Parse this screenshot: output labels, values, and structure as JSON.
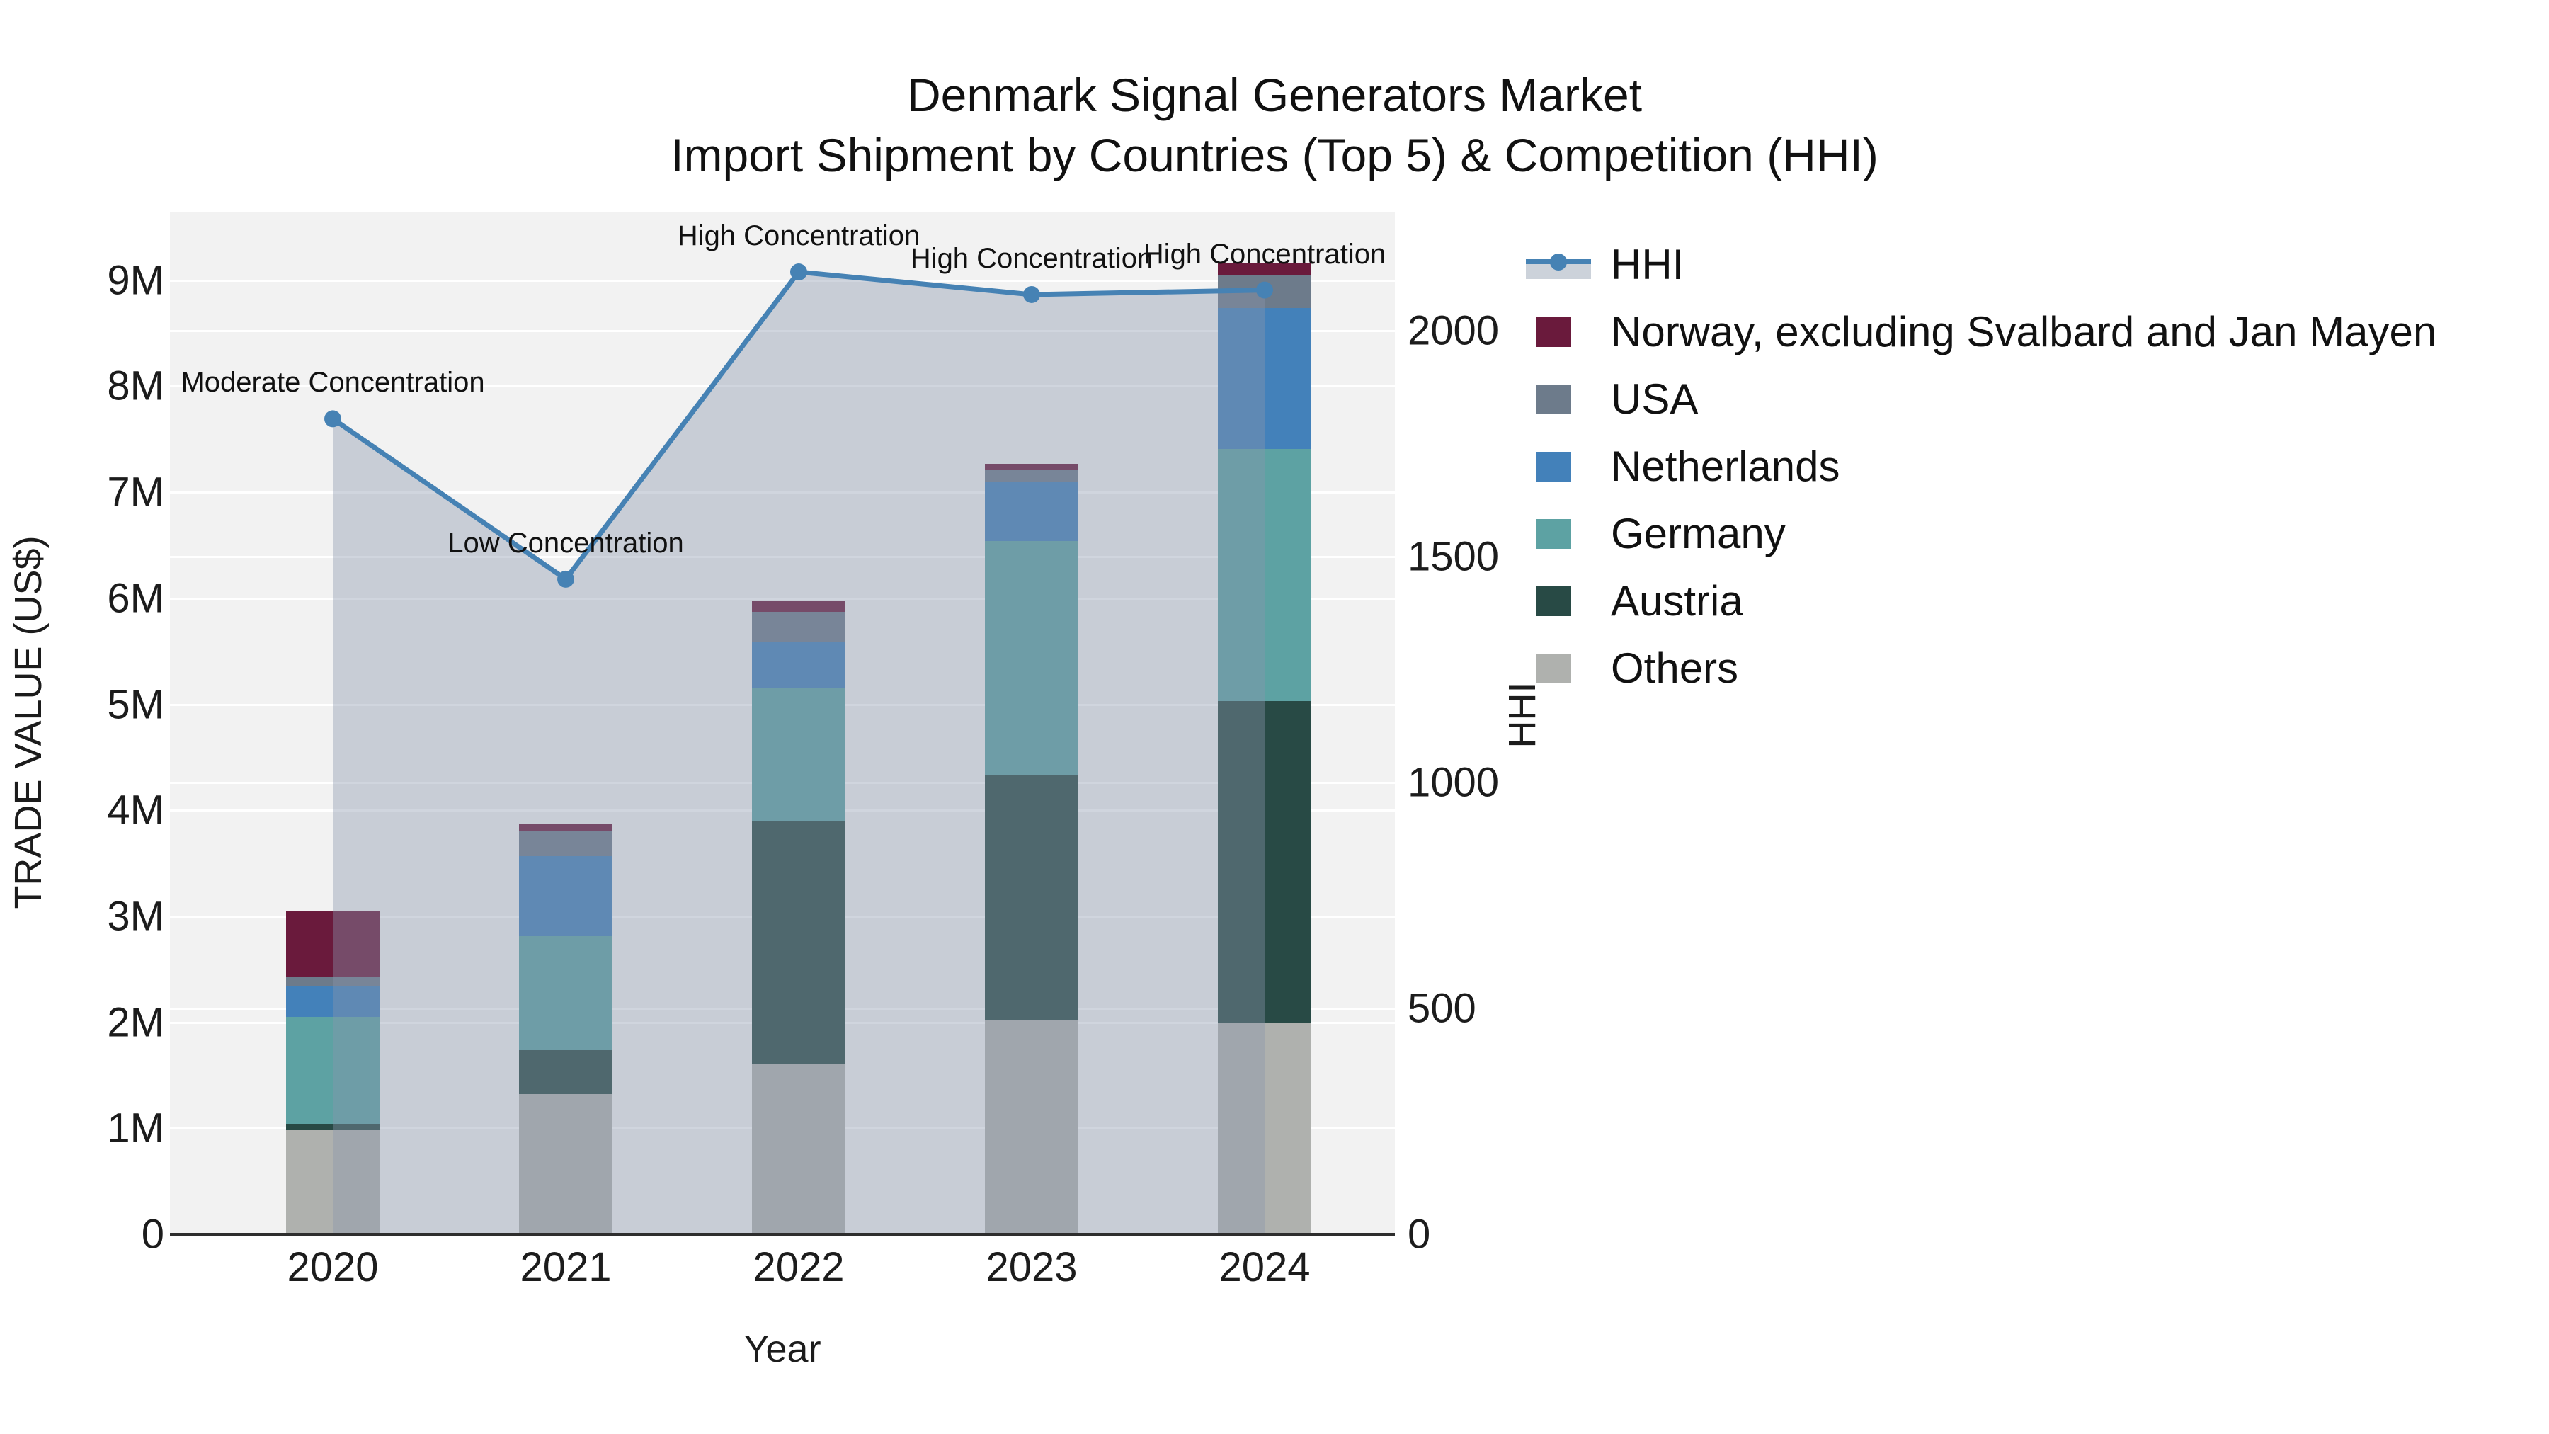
{
  "title": {
    "line1": "Denmark Signal Generators Market",
    "line2": "Import Shipment by Countries (Top 5) & Competition (HHI)"
  },
  "axes": {
    "x": {
      "label": "Year",
      "ticks": [
        "2020",
        "2021",
        "2022",
        "2023",
        "2024"
      ]
    },
    "y_left": {
      "label": "TRADE VALUE (US$)",
      "ticks": [
        {
          "label": "0",
          "value": 0
        },
        {
          "label": "1M",
          "value": 1
        },
        {
          "label": "2M",
          "value": 2
        },
        {
          "label": "3M",
          "value": 3
        },
        {
          "label": "4M",
          "value": 4
        },
        {
          "label": "5M",
          "value": 5
        },
        {
          "label": "6M",
          "value": 6
        },
        {
          "label": "7M",
          "value": 7
        },
        {
          "label": "8M",
          "value": 8
        },
        {
          "label": "9M",
          "value": 9
        }
      ]
    },
    "y_right": {
      "label": "HHI",
      "ticks": [
        {
          "label": "0",
          "value": 0
        },
        {
          "label": "500",
          "value": 500
        },
        {
          "label": "1000",
          "value": 1000
        },
        {
          "label": "1500",
          "value": 1500
        },
        {
          "label": "2000",
          "value": 2000
        }
      ]
    }
  },
  "colors": {
    "plot_background": "#f2f2f2",
    "grid": "#ffffff",
    "axis_spine": "#2e2e2e",
    "hhi_line": "#4682b4",
    "hhi_area_fill": "rgba(138,151,173,0.40)",
    "text": "#111111"
  },
  "chart_data": {
    "type": "combo",
    "bar_type": "stacked",
    "categories": [
      "2020",
      "2021",
      "2022",
      "2023",
      "2024"
    ],
    "xlabel": "Year",
    "ylabel_left": "TRADE VALUE (US$)",
    "ylabel_right": "HHI",
    "ylim_left_millions": [
      0,
      9.64
    ],
    "ylim_right_hhi": [
      0,
      2262
    ],
    "grid": true,
    "legend_position": "right",
    "bar_series_bottom_to_top": [
      {
        "name": "Others",
        "color": "#afb1ae",
        "values_millions": [
          0.98,
          1.32,
          1.6,
          2.02,
          2.0
        ]
      },
      {
        "name": "Austria",
        "color": "#284a45",
        "values_millions": [
          0.06,
          0.42,
          2.3,
          2.31,
          3.03
        ]
      },
      {
        "name": "Germany",
        "color": "#5da2a3",
        "values_millions": [
          1.01,
          1.07,
          1.26,
          2.21,
          2.38
        ]
      },
      {
        "name": "Netherlands",
        "color": "#4381ba",
        "values_millions": [
          0.29,
          0.76,
          0.43,
          0.56,
          1.33
        ]
      },
      {
        "name": "USA",
        "color": "#6d7b8b",
        "values_millions": [
          0.09,
          0.24,
          0.28,
          0.11,
          0.31
        ]
      },
      {
        "name": "Norway, excluding Svalbard and Jan Mayen",
        "color": "#6a1a3c",
        "values_millions": [
          0.62,
          0.06,
          0.11,
          0.06,
          0.11
        ]
      }
    ],
    "bar_totals_millions": [
      3.05,
      3.87,
      5.98,
      7.27,
      9.16
    ],
    "line_series": {
      "name": "HHI",
      "color": "#4682b4",
      "area_fill": "rgba(138,151,173,0.40)",
      "values": [
        1805,
        1450,
        2130,
        2080,
        2090
      ]
    },
    "annotations": [
      {
        "category": "2020",
        "text": "Moderate Concentration"
      },
      {
        "category": "2021",
        "text": "Low Concentration"
      },
      {
        "category": "2022",
        "text": "High Concentration"
      },
      {
        "category": "2023",
        "text": "High Concentration"
      },
      {
        "category": "2024",
        "text": "High Concentration"
      }
    ]
  },
  "legend": [
    {
      "label": "HHI",
      "type": "line",
      "color": "#4682b4"
    },
    {
      "label": "Norway, excluding Svalbard and Jan Mayen",
      "type": "patch",
      "color": "#6a1a3c"
    },
    {
      "label": "USA",
      "type": "patch",
      "color": "#6d7b8b"
    },
    {
      "label": "Netherlands",
      "type": "patch",
      "color": "#4381ba"
    },
    {
      "label": "Germany",
      "type": "patch",
      "color": "#5da2a3"
    },
    {
      "label": "Austria",
      "type": "patch",
      "color": "#284a45"
    },
    {
      "label": "Others",
      "type": "patch",
      "color": "#afb1ae"
    }
  ]
}
